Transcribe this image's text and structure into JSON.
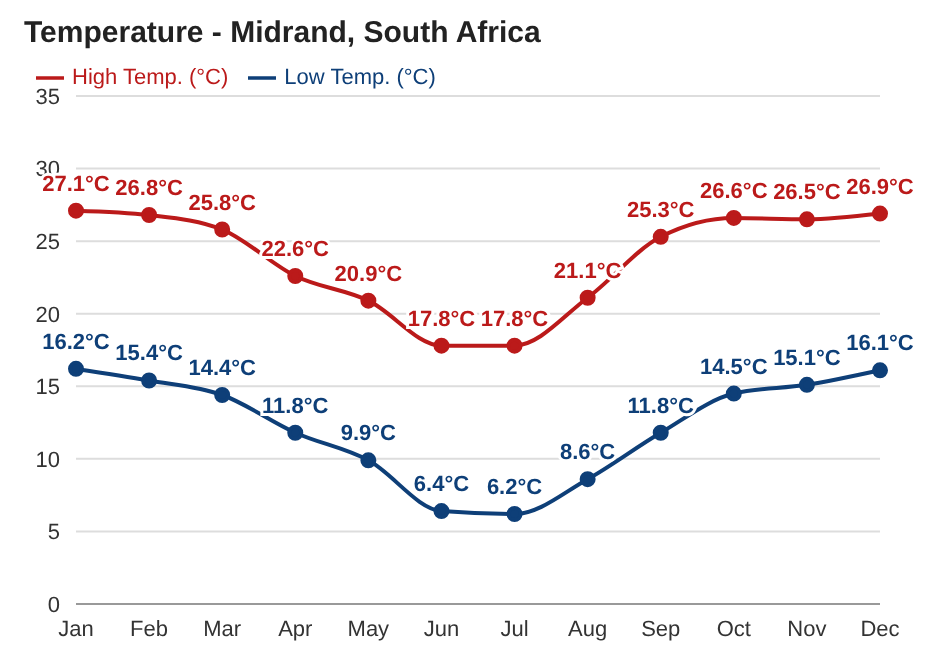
{
  "chart_data": {
    "type": "line",
    "title": "Temperature - Midrand, South Africa",
    "categories": [
      "Jan",
      "Feb",
      "Mar",
      "Apr",
      "May",
      "Jun",
      "Jul",
      "Aug",
      "Sep",
      "Oct",
      "Nov",
      "Dec"
    ],
    "series": [
      {
        "name": "High Temp. (°C)",
        "color": "#bb1a1a",
        "values": [
          27.1,
          26.8,
          25.8,
          22.6,
          20.9,
          17.8,
          17.8,
          21.1,
          25.3,
          26.6,
          26.5,
          26.9
        ],
        "value_labels": [
          "27.1°C",
          "26.8°C",
          "25.8°C",
          "22.6°C",
          "20.9°C",
          "17.8°C",
          "17.8°C",
          "21.1°C",
          "25.3°C",
          "26.6°C",
          "26.5°C",
          "26.9°C"
        ]
      },
      {
        "name": "Low Temp. (°C)",
        "color": "#0e3f78",
        "values": [
          16.2,
          15.4,
          14.4,
          11.8,
          9.9,
          6.4,
          6.2,
          8.6,
          11.8,
          14.5,
          15.1,
          16.1
        ],
        "value_labels": [
          "16.2°C",
          "15.4°C",
          "14.4°C",
          "11.8°C",
          "9.9°C",
          "6.4°C",
          "6.2°C",
          "8.6°C",
          "11.8°C",
          "14.5°C",
          "15.1°C",
          "16.1°C"
        ]
      }
    ],
    "ylim": [
      0,
      35
    ],
    "yticks": [
      0,
      5,
      10,
      15,
      20,
      25,
      30,
      35
    ],
    "grid": "y",
    "legend": "top left",
    "marker": "circle",
    "line_style": "solid"
  }
}
